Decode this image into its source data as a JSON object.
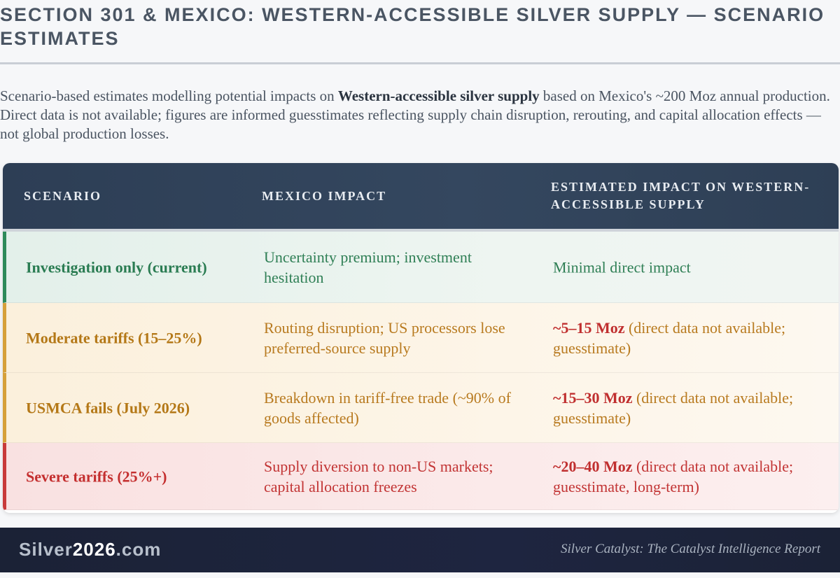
{
  "header": {
    "title": "SECTION 301 & MEXICO: WESTERN-ACCESSIBLE SILVER SUPPLY — SCENARIO ESTIMATES"
  },
  "intro": {
    "before": "Scenario-based estimates modelling potential impacts on ",
    "bold": "Western-accessible silver supply",
    "after": " based on Mexico's ~200 Moz annual production. Direct data is not available; figures are informed guesstimates reflecting supply chain disruption, rerouting, and capital allocation effects — not global production losses."
  },
  "table": {
    "headers": [
      "SCENARIO",
      "MEXICO IMPACT",
      "ESTIMATED IMPACT ON WESTERN-ACCESSIBLE SUPPLY"
    ],
    "rows": [
      {
        "scenario": "Investigation only (current)",
        "mexico_impact": "Uncertainty premium; investment hesitation",
        "estimate_value": "",
        "estimate_text": "Minimal direct impact",
        "status_color": "#2e8a5a"
      },
      {
        "scenario": "Moderate tariffs (15–25%)",
        "mexico_impact": "Routing disruption; US processors lose preferred-source supply",
        "estimate_value": "~5–15 Moz",
        "estimate_text": " (direct data not available; guesstimate)",
        "status_color": "#d6a03a"
      },
      {
        "scenario": "USMCA fails (July 2026)",
        "mexico_impact": "Breakdown in tariff-free trade (~90% of goods affected)",
        "estimate_value": "~15–30 Moz",
        "estimate_text": " (direct data not available; guesstimate)",
        "status_color": "#d6a03a"
      },
      {
        "scenario": "Severe tariffs (25%+)",
        "mexico_impact": "Supply diversion to non-US markets; capital allocation freezes",
        "estimate_value": "~20–40 Moz",
        "estimate_text": " (direct data not available; guesstimate, long-term)",
        "status_color": "#c83a3a"
      }
    ]
  },
  "footer": {
    "brand_prefix": "Silver",
    "brand_accent": "2026",
    "brand_suffix": ".com",
    "tagline": "Silver Catalyst: The Catalyst Intelligence Report"
  }
}
